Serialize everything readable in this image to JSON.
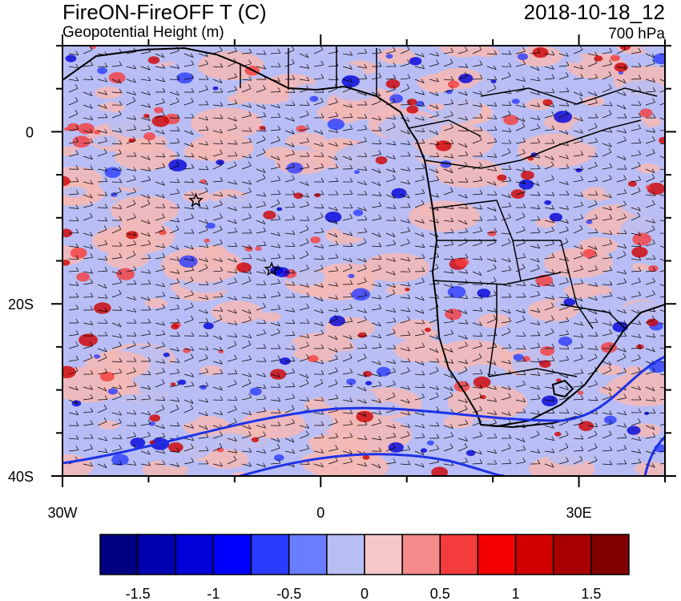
{
  "header": {
    "title": "FireON-FireOFF T (C)",
    "subtitle": "Geopotential Height (m)",
    "datetime": "2018-10-18_12",
    "level": "700 hPa"
  },
  "map": {
    "lon_range": [
      -30,
      40
    ],
    "lat_range": [
      -40,
      10
    ],
    "x_ticks": [
      {
        "lon": -30,
        "label": "30W"
      },
      {
        "lon": 0,
        "label": "0"
      },
      {
        "lon": 30,
        "label": "30E"
      }
    ],
    "y_ticks": [
      {
        "lat": 0,
        "label": "0"
      },
      {
        "lat": -20,
        "label": "20S"
      },
      {
        "lat": -40,
        "label": "40S"
      }
    ],
    "markers": [
      {
        "name": "star",
        "lon": -14.5,
        "lat": -8
      },
      {
        "name": "star",
        "lon": -5.7,
        "lat": -16
      }
    ],
    "shading_colors": {
      "positive": "#f5b8b5",
      "negative": "#b8bef5"
    }
  },
  "colorbar": {
    "colors": [
      "#000080",
      "#0000b0",
      "#0000d8",
      "#0000ff",
      "#2a3cff",
      "#6a7cff",
      "#b8bff5",
      "#f6c7c7",
      "#f58a8a",
      "#f53c3c",
      "#f50000",
      "#d00000",
      "#a80000",
      "#800000"
    ],
    "labels": [
      "-1.5",
      "-1",
      "-0.5",
      "0",
      "0.5",
      "1",
      "1.5"
    ]
  }
}
